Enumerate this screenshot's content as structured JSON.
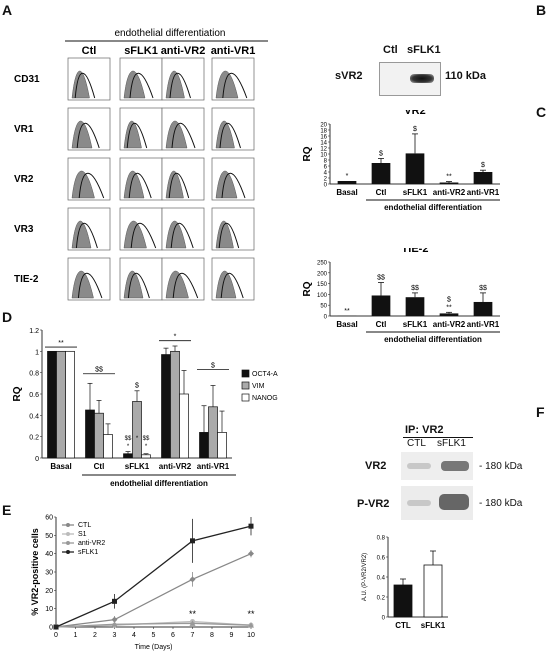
{
  "panel_letters": {
    "A": "A",
    "B": "B",
    "C": "C",
    "D": "D",
    "E": "E",
    "F": "F"
  },
  "panel_a": {
    "header": "endothelial differentiation",
    "columns": [
      "Ctl",
      "sFLK1",
      "anti-VR2",
      "anti-VR1"
    ],
    "rows": [
      "CD31",
      "VR1",
      "VR2",
      "VR3",
      "TIE-2"
    ]
  },
  "panel_b": {
    "lanes": [
      "Ctl",
      "sFLK1"
    ],
    "band_label": "sVR2",
    "size_label": "110 kDa"
  },
  "panel_f": {
    "ip_label": "IP: VR2",
    "lanes": [
      "CTL",
      "sFLK1"
    ],
    "blots": [
      {
        "label": "VR2",
        "size": "- 180 kDa"
      },
      {
        "label": "P-VR2",
        "size": "- 180 kDa"
      }
    ]
  },
  "chart_data": [
    {
      "panel": "C-VR2",
      "type": "bar",
      "title": "VR2",
      "ylabel": "RQ",
      "ylim": [
        0,
        20
      ],
      "yticks": [
        0,
        2,
        4,
        6,
        8,
        10,
        12,
        14,
        16,
        18,
        20
      ],
      "categories": [
        "Basal",
        "Ctl",
        "sFLK1",
        "anti-VR2",
        "anti-VR1"
      ],
      "values": [
        1,
        7,
        10.2,
        0.5,
        4
      ],
      "errors": [
        0,
        1.5,
        6.5,
        0.3,
        0.6
      ],
      "annotations": [
        "*",
        "$",
        "$",
        "**",
        "$"
      ],
      "group_label": "endothelial differentiation",
      "bar_color": "#111111"
    },
    {
      "panel": "C-TIE2",
      "type": "bar",
      "title": "TIE-2",
      "ylabel": "RQ",
      "ylim": [
        0,
        250
      ],
      "yticks": [
        0,
        50,
        100,
        150,
        200,
        250
      ],
      "categories": [
        "Basal",
        "Ctl",
        "sFLK1",
        "anti-VR2",
        "anti-VR1"
      ],
      "values": [
        1,
        95,
        87,
        12,
        65
      ],
      "errors": [
        0,
        60,
        20,
        5,
        42
      ],
      "annotations": [
        "**",
        "$$",
        "$$",
        "$\n**",
        "$$"
      ],
      "group_label": "endothelial differentiation",
      "bar_color": "#111111"
    },
    {
      "panel": "D",
      "type": "bar",
      "ylabel": "RQ",
      "ylim": [
        0,
        1.2
      ],
      "yticks": [
        0,
        0.2,
        0.4,
        0.6,
        0.8,
        1,
        1.2
      ],
      "categories": [
        "Basal",
        "Ctl",
        "sFLK1",
        "anti-VR2",
        "anti-VR1"
      ],
      "series": [
        {
          "name": "OCT4-A",
          "color": "#111111",
          "values": [
            1,
            0.45,
            0.04,
            0.97,
            0.24
          ],
          "errors": [
            0,
            0.25,
            0.02,
            0.06,
            0.25
          ]
        },
        {
          "name": "VIM",
          "color": "#aaaaaa",
          "values": [
            1,
            0.42,
            0.53,
            1.0,
            0.48
          ],
          "errors": [
            0,
            0.12,
            0.1,
            0.05,
            0.2
          ]
        },
        {
          "name": "NANOG",
          "color": "#ffffff",
          "values": [
            1,
            0.22,
            0.03,
            0.6,
            0.24
          ],
          "errors": [
            0,
            0.1,
            0.01,
            0.22,
            0.2
          ]
        }
      ],
      "annotations": {
        "basal": "**",
        "ctl": "$$",
        "sflk1_top": "$",
        "sflk1_low": [
          "$$\n*",
          "*",
          "$$\n*"
        ],
        "antivr2": "*",
        "antivr1": "$"
      },
      "group_label": "endothelial differentiation",
      "legend": "right"
    },
    {
      "panel": "E",
      "type": "line",
      "xlabel": "Time (Days)",
      "ylabel": "% VR2-positive cells",
      "xlim": [
        0,
        10
      ],
      "ylim": [
        0,
        60
      ],
      "xticks": [
        0,
        1,
        2,
        3,
        4,
        5,
        6,
        7,
        8,
        9,
        10
      ],
      "yticks": [
        0,
        10,
        20,
        30,
        40,
        50,
        60
      ],
      "series": [
        {
          "name": "CTL",
          "color": "#888888",
          "marker": "diamond",
          "x": [
            0,
            3,
            7,
            10
          ],
          "y": [
            0,
            4,
            26,
            40
          ],
          "err": [
            0,
            2,
            4,
            2
          ]
        },
        {
          "name": "S1",
          "color": "#bbbbbb",
          "marker": "circle",
          "x": [
            0,
            3,
            7,
            10
          ],
          "y": [
            0,
            1,
            3,
            1
          ],
          "err": [
            0,
            0.5,
            1,
            0.5
          ]
        },
        {
          "name": "anti-VR2",
          "color": "#999999",
          "marker": "triangle",
          "x": [
            0,
            3,
            7,
            10
          ],
          "y": [
            0,
            1.5,
            2,
            1
          ],
          "err": [
            0,
            0.5,
            0.5,
            0.5
          ]
        },
        {
          "name": "sFLK1",
          "color": "#222222",
          "marker": "square",
          "x": [
            0,
            3,
            7,
            10
          ],
          "y": [
            0,
            14,
            47,
            55
          ],
          "err": [
            0,
            4,
            12,
            5
          ]
        }
      ],
      "annotations": [
        {
          "x": 7,
          "text": "**"
        },
        {
          "x": 10,
          "text": "**"
        }
      ],
      "legend": "top-left"
    },
    {
      "panel": "F-quant",
      "type": "bar",
      "ylabel": "A.U. (P-VR2/VR2)",
      "ylim": [
        0,
        0.8
      ],
      "yticks": [
        0,
        0.2,
        0.4,
        0.6,
        0.8
      ],
      "categories": [
        "CTL",
        "sFLK1"
      ],
      "values": [
        0.32,
        0.52
      ],
      "errors": [
        0.06,
        0.14
      ],
      "colors": [
        "#111111",
        "#ffffff"
      ]
    }
  ]
}
